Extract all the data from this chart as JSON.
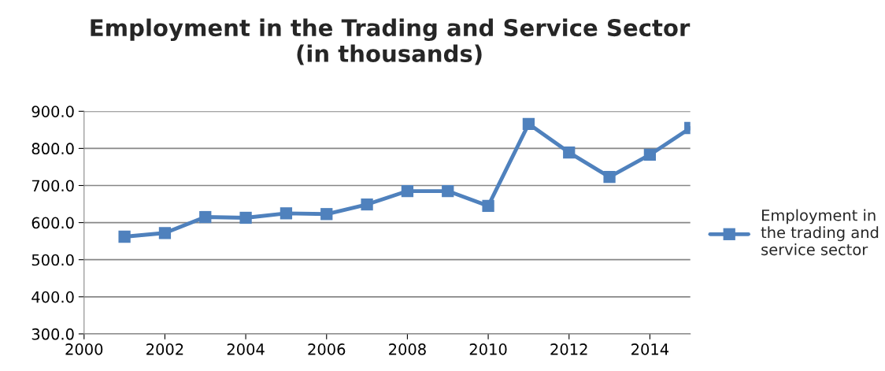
{
  "chart_data": {
    "type": "line",
    "title": "Employment in the Trading and Service Sector\n(in thousands)",
    "x": [
      2001,
      2002,
      2003,
      2004,
      2005,
      2006,
      2007,
      2008,
      2009,
      2010,
      2011,
      2012,
      2013,
      2014,
      2015
    ],
    "series": [
      {
        "name": "Employment in\nthe trading and\nservice sector",
        "color": "#4f81bd",
        "values": [
          562,
          572,
          615,
          613,
          625,
          623,
          649,
          685,
          685,
          645,
          866,
          789,
          723,
          783,
          855
        ]
      }
    ],
    "xlim": [
      2000,
      2015
    ],
    "xticks": [
      2000,
      2002,
      2004,
      2006,
      2008,
      2010,
      2012,
      2014
    ],
    "ylim": [
      300,
      900
    ],
    "yticks": [
      {
        "value": 300,
        "label": "300.0"
      },
      {
        "value": 400,
        "label": "400.0"
      },
      {
        "value": 500,
        "label": "500.0"
      },
      {
        "value": 600,
        "label": "600.0"
      },
      {
        "value": 700,
        "label": "700.0"
      },
      {
        "value": 800,
        "label": "800.0"
      },
      {
        "value": 900,
        "label": "900.0"
      }
    ],
    "grid": "y",
    "legend": "right",
    "marker": "square",
    "line_style": "solid"
  }
}
